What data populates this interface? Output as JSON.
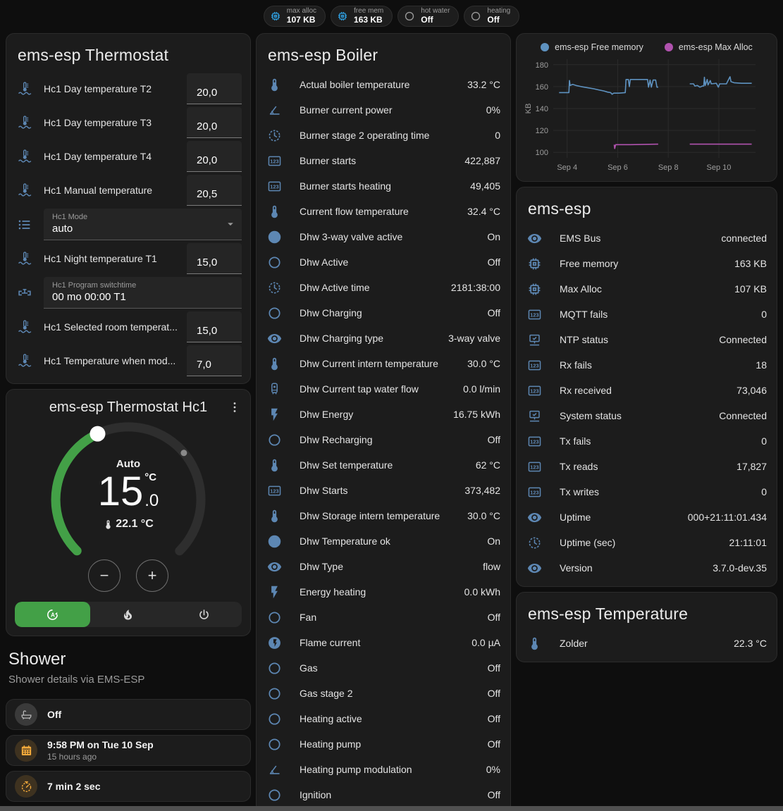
{
  "colors": {
    "page_bg": "#0e0e0e",
    "card_bg": "#1c1c1c",
    "icon_blue": "#5d87b3",
    "badge_blue": "#2f9fe0",
    "accent_green": "#43a047",
    "amber": "#f2a93b",
    "chart_blue": "#5e92c0",
    "chart_purple": "#b052ae"
  },
  "badges": [
    {
      "icon": "memory",
      "icon_color": "#2f9fe0",
      "label": "max alloc",
      "value": "107 KB"
    },
    {
      "icon": "memory",
      "icon_color": "#2f9fe0",
      "label": "free mem",
      "value": "163 KB"
    },
    {
      "icon": "circle",
      "icon_color": "#9a9a9a",
      "label": "hot water",
      "value": "Off"
    },
    {
      "icon": "circle",
      "icon_color": "#9a9a9a",
      "label": "heating",
      "value": "Off"
    }
  ],
  "thermostat_card": {
    "title": "ems-esp Thermostat",
    "rows": [
      {
        "kind": "number",
        "icon": "coolant",
        "label": "Hc1 Day temperature T2",
        "value": "20,0"
      },
      {
        "kind": "number",
        "icon": "coolant",
        "label": "Hc1 Day temperature T3",
        "value": "20,0"
      },
      {
        "kind": "number",
        "icon": "coolant",
        "label": "Hc1 Day temperature T4",
        "value": "20,0"
      },
      {
        "kind": "number",
        "icon": "coolant",
        "label": "Hc1 Manual temperature",
        "value": "20,5"
      },
      {
        "kind": "select",
        "icon": "list",
        "label": "Hc1 Mode",
        "value": "auto"
      },
      {
        "kind": "number",
        "icon": "coolant",
        "label": "Hc1 Night temperature T1",
        "value": "15,0"
      },
      {
        "kind": "textfield",
        "icon": "valve",
        "label": "Hc1 Program switchtime",
        "value": "00 mo 00:00 T1"
      },
      {
        "kind": "number",
        "icon": "coolant",
        "label": "Hc1 Selected room temperat...",
        "value": "15,0"
      },
      {
        "kind": "number",
        "icon": "coolant",
        "label": "Hc1 Temperature when mod...",
        "value": "7,0"
      }
    ]
  },
  "dial_card": {
    "title": "ems-esp Thermostat Hc1",
    "mode_text": "Auto",
    "target_int": "15",
    "target_frac": ".0",
    "target_unit": "°C",
    "current_temp": "22.1 °C",
    "minus_label": "−",
    "plus_label": "+",
    "modes": [
      {
        "icon": "auto",
        "name": "auto",
        "active": true
      },
      {
        "icon": "flame",
        "name": "heat",
        "active": false
      },
      {
        "icon": "power",
        "name": "off",
        "active": false
      }
    ]
  },
  "shower": {
    "title": "Shower",
    "subtitle": "Shower details via EMS-ESP",
    "items": [
      {
        "icon": "bathtub",
        "style": "gray",
        "title": "Off",
        "subtitle": ""
      },
      {
        "icon": "calendar",
        "style": "amber",
        "title": "9:58 PM on Tue 10 Sep",
        "subtitle": "15 hours ago"
      },
      {
        "icon": "timer",
        "style": "amber",
        "title": "7 min 2 sec",
        "subtitle": ""
      },
      {
        "icon": "snowflake-alert",
        "style": "center",
        "title": "",
        "subtitle": ""
      }
    ]
  },
  "boiler_card": {
    "title": "ems-esp Boiler",
    "rows": [
      {
        "icon": "thermo",
        "label": "Actual boiler temperature",
        "value": "33.2 °C"
      },
      {
        "icon": "angle",
        "label": "Burner current power",
        "value": "0%"
      },
      {
        "icon": "clock",
        "label": "Burner stage 2 operating time",
        "value": "0"
      },
      {
        "icon": "counter",
        "label": "Burner starts",
        "value": "422,887"
      },
      {
        "icon": "counter",
        "label": "Burner starts heating",
        "value": "49,405"
      },
      {
        "icon": "thermo",
        "label": "Current flow temperature",
        "value": "32.4 °C"
      },
      {
        "icon": "check-circle",
        "label": "Dhw 3-way valve active",
        "value": "On"
      },
      {
        "icon": "circle",
        "label": "Dhw Active",
        "value": "Off"
      },
      {
        "icon": "clock",
        "label": "Dhw Active time",
        "value": "2181:38:00"
      },
      {
        "icon": "circle",
        "label": "Dhw Charging",
        "value": "Off"
      },
      {
        "icon": "eye",
        "label": "Dhw Charging type",
        "value": "3-way valve"
      },
      {
        "icon": "thermo",
        "label": "Dhw Current intern temperature",
        "value": "30.0 °C"
      },
      {
        "icon": "boiler",
        "label": "Dhw Current tap water flow",
        "value": "0.0 l/min"
      },
      {
        "icon": "bolt",
        "label": "Dhw Energy",
        "value": "16.75 kWh"
      },
      {
        "icon": "circle",
        "label": "Dhw Recharging",
        "value": "Off"
      },
      {
        "icon": "thermo",
        "label": "Dhw Set temperature",
        "value": "62 °C"
      },
      {
        "icon": "counter",
        "label": "Dhw Starts",
        "value": "373,482"
      },
      {
        "icon": "thermo",
        "label": "Dhw Storage intern temperature",
        "value": "30.0 °C"
      },
      {
        "icon": "check-circle",
        "label": "Dhw Temperature ok",
        "value": "On"
      },
      {
        "icon": "eye",
        "label": "Dhw Type",
        "value": "flow"
      },
      {
        "icon": "bolt",
        "label": "Energy heating",
        "value": "0.0 kWh"
      },
      {
        "icon": "circle",
        "label": "Fan",
        "value": "Off"
      },
      {
        "icon": "bolt-circle",
        "label": "Flame current",
        "value": "0.0 µA"
      },
      {
        "icon": "circle",
        "label": "Gas",
        "value": "Off"
      },
      {
        "icon": "circle",
        "label": "Gas stage 2",
        "value": "Off"
      },
      {
        "icon": "circle",
        "label": "Heating active",
        "value": "Off"
      },
      {
        "icon": "circle",
        "label": "Heating pump",
        "value": "Off"
      },
      {
        "icon": "angle",
        "label": "Heating pump modulation",
        "value": "0%"
      },
      {
        "icon": "circle",
        "label": "Ignition",
        "value": "Off"
      }
    ]
  },
  "emsesp_card": {
    "title": "ems-esp",
    "rows": [
      {
        "icon": "eye",
        "label": "EMS Bus",
        "value": "connected"
      },
      {
        "icon": "memory",
        "label": "Free memory",
        "value": "163 KB"
      },
      {
        "icon": "memory",
        "label": "Max Alloc",
        "value": "107 KB"
      },
      {
        "icon": "counter",
        "label": "MQTT fails",
        "value": "0"
      },
      {
        "icon": "net",
        "label": "NTP status",
        "value": "Connected"
      },
      {
        "icon": "counter",
        "label": "Rx fails",
        "value": "18"
      },
      {
        "icon": "counter",
        "label": "Rx received",
        "value": "73,046"
      },
      {
        "icon": "net",
        "label": "System status",
        "value": "Connected"
      },
      {
        "icon": "counter",
        "label": "Tx fails",
        "value": "0"
      },
      {
        "icon": "counter",
        "label": "Tx reads",
        "value": "17,827"
      },
      {
        "icon": "counter",
        "label": "Tx writes",
        "value": "0"
      },
      {
        "icon": "eye",
        "label": "Uptime",
        "value": "000+21:11:01.434"
      },
      {
        "icon": "clock",
        "label": "Uptime (sec)",
        "value": "21:11:01"
      },
      {
        "icon": "eye",
        "label": "Version",
        "value": "3.7.0-dev.35"
      }
    ]
  },
  "temp_card": {
    "title": "ems-esp Temperature",
    "rows": [
      {
        "icon": "thermo",
        "label": "Zolder",
        "value": "22.3 °C"
      }
    ]
  },
  "chart_data": {
    "type": "line",
    "title": "",
    "xlabel": "",
    "ylabel": "KB",
    "xlim": [
      3.45,
      11.45
    ],
    "ylim": [
      95,
      185
    ],
    "grid": true,
    "legend_position": "top",
    "x_ticks": [
      {
        "v": 4,
        "label": "Sep 4"
      },
      {
        "v": 6,
        "label": "Sep 6"
      },
      {
        "v": 8,
        "label": "Sep 8"
      },
      {
        "v": 10,
        "label": "Sep 10"
      }
    ],
    "y_ticks": [
      100,
      120,
      140,
      160,
      180
    ],
    "series": [
      {
        "name": "ems-esp Free memory",
        "color": "#5e92c0",
        "points": [
          [
            3.68,
            154.5
          ],
          [
            4.07,
            154.5
          ],
          [
            4.09,
            165.5
          ],
          [
            4.12,
            161
          ],
          [
            4.22,
            162
          ],
          [
            4.35,
            161
          ],
          [
            4.55,
            160
          ],
          [
            4.8,
            159
          ],
          [
            5.05,
            158
          ],
          [
            5.25,
            157
          ],
          [
            5.45,
            156
          ],
          [
            5.6,
            155
          ],
          [
            5.72,
            154.5
          ],
          [
            5.78,
            153
          ],
          [
            5.84,
            154
          ],
          [
            6.05,
            154
          ],
          [
            6.3,
            154.5
          ],
          [
            6.33,
            166.5
          ],
          [
            6.42,
            166.5
          ],
          [
            6.46,
            160
          ],
          [
            6.5,
            166.5
          ],
          [
            7.18,
            166.5
          ],
          [
            7.22,
            159.5
          ],
          [
            7.28,
            166
          ],
          [
            7.33,
            159.5
          ],
          [
            7.4,
            166
          ],
          [
            7.5,
            166
          ],
          [
            7.55,
            159.5
          ],
          [
            7.6,
            159.5
          ],
          null,
          [
            8.85,
            162.5
          ],
          [
            9.0,
            162.5
          ],
          [
            9.05,
            160.5
          ],
          [
            9.15,
            161
          ],
          [
            9.25,
            159.5
          ],
          [
            9.35,
            160.5
          ],
          [
            9.4,
            160.5
          ],
          [
            9.43,
            168.5
          ],
          [
            9.46,
            161
          ],
          [
            9.54,
            166.5
          ],
          [
            9.57,
            161.5
          ],
          [
            9.66,
            165.5
          ],
          [
            9.7,
            162.5
          ],
          [
            9.9,
            163
          ],
          [
            9.98,
            159.5
          ],
          [
            10.03,
            162.5
          ],
          [
            10.3,
            162.5
          ],
          [
            10.44,
            169
          ],
          [
            10.48,
            164.5
          ],
          [
            10.6,
            163.5
          ],
          [
            10.9,
            163
          ],
          [
            11.3,
            163
          ]
        ]
      },
      {
        "name": "ems-esp Max Alloc",
        "color": "#b052ae",
        "points": [
          [
            5.86,
            107
          ],
          [
            5.88,
            103.5
          ],
          [
            5.92,
            107
          ],
          [
            6.5,
            107
          ],
          [
            7.6,
            107.5
          ],
          null,
          [
            8.85,
            107.5
          ],
          [
            9.5,
            107.5
          ],
          [
            10.2,
            107.5
          ],
          [
            11.3,
            107.5
          ]
        ]
      }
    ]
  }
}
